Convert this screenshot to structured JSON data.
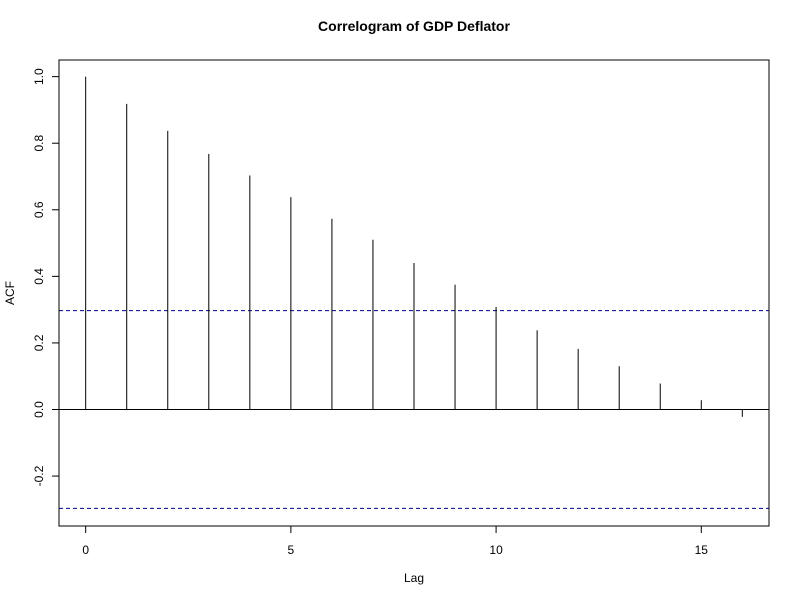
{
  "chart_data": {
    "type": "bar",
    "title": "Correlogram of GDP Deflator",
    "xlabel": "Lag",
    "ylabel": "ACF",
    "x": [
      0,
      1,
      2,
      3,
      4,
      5,
      6,
      7,
      8,
      9,
      10,
      11,
      12,
      13,
      14,
      15,
      16
    ],
    "values": [
      1.0,
      0.918,
      0.837,
      0.768,
      0.703,
      0.638,
      0.573,
      0.51,
      0.44,
      0.375,
      0.308,
      0.238,
      0.182,
      0.13,
      0.078,
      0.028,
      -0.022
    ],
    "xlim": [
      -0.65,
      16.65
    ],
    "ylim": [
      -0.35,
      1.05
    ],
    "xticks": [
      0,
      5,
      10,
      15
    ],
    "yticks": [
      -0.2,
      0.0,
      0.2,
      0.4,
      0.6,
      0.8,
      1.0
    ],
    "xtick_labels": [
      "0",
      "5",
      "10",
      "15"
    ],
    "ytick_labels": [
      "-0.2",
      "0.0",
      "0.2",
      "0.4",
      "0.6",
      "0.8",
      "1.0"
    ],
    "confidence_band": 0.297,
    "zero_line": true,
    "grid": false,
    "colors": {
      "spike": "#000000",
      "confidence": "#00008b",
      "frame": "#000000"
    }
  }
}
